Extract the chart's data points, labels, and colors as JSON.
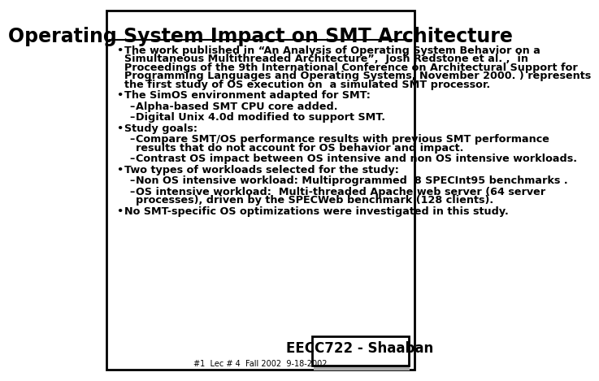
{
  "title": "Operating System Impact on SMT Architecture",
  "background_color": "#ffffff",
  "border_color": "#000000",
  "title_fontsize": 17,
  "title_font": "DejaVu Sans",
  "body_fontsize": 9.2,
  "bullet_items": [
    {
      "level": 0,
      "text": "The work published in “An Analysis of Operating System Behavior on a\nSimultaneous Multithreaded Architecture”,  Josh Redstone et al. ,  in\nProceedings of the 9th International Conference on Architectural Support for\nProgramming Languages and Operating Systems, November 2000. ) represents\nthe first study of OS execution on  a simulated SMT processor."
    },
    {
      "level": 0,
      "text": "The SimOS environment adapted for SMT:"
    },
    {
      "level": 1,
      "text": "Alpha-based SMT CPU core added."
    },
    {
      "level": 1,
      "text": "Digital Unix 4.0d modified to support SMT."
    },
    {
      "level": 0,
      "text": "Study goals:"
    },
    {
      "level": 1,
      "text": "Compare SMT/OS performance results with previous SMT performance\nresults that do not account for OS behavior and impact."
    },
    {
      "level": 1,
      "text": "Contrast OS impact between OS intensive and non OS intensive workloads."
    },
    {
      "level": 0,
      "text": "Two types of workloads selected for the study:"
    },
    {
      "level": 1,
      "text": "Non OS intensive workload: Multiprogrammed  8 SPECInt95 benchmarks ."
    },
    {
      "level": 1,
      "text": "OS intensive workload:  Multi-threaded Apache web server (64 server\nprocesses), driven by the SPECWeb benchmark (128 clients)."
    },
    {
      "level": 0,
      "text": "No SMT-specific OS optimizations were investigated in this study."
    }
  ],
  "footer_label": "EECC722 - Shaaban",
  "footer_sub": "#1  Lec # 4  Fall 2002  9-18-2002",
  "footer_fontsize": 12,
  "footer_sub_fontsize": 7
}
